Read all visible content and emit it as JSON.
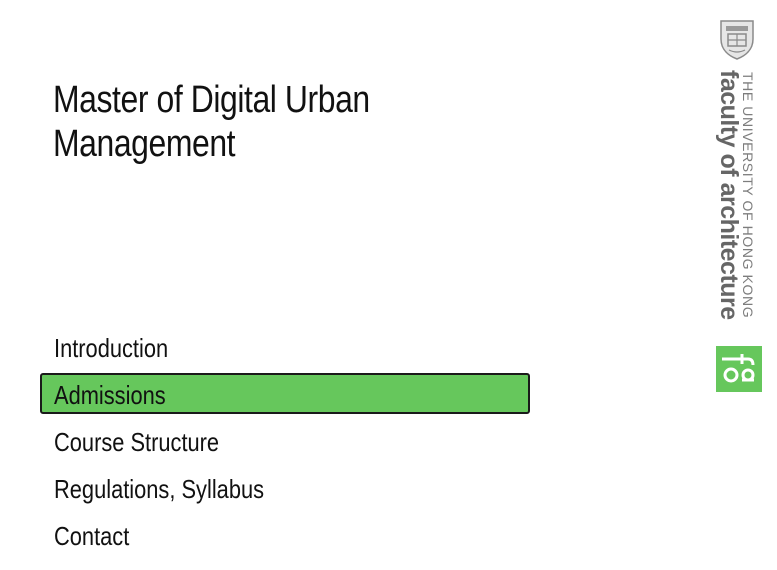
{
  "header": {
    "title_line1": "Master of Digital Urban",
    "title_line2": "Management"
  },
  "nav": {
    "items": [
      {
        "label": "Introduction",
        "active": false
      },
      {
        "label": "Admissions",
        "active": true
      },
      {
        "label": "Course Structure",
        "active": false
      },
      {
        "label": "Regulations, Syllabus",
        "active": false
      },
      {
        "label": "Contact",
        "active": false
      }
    ]
  },
  "logo": {
    "university": "THE UNIVERSITY OF HONG KONG",
    "faculty": "faculty of architecture",
    "mark": "foa",
    "crest_icon": "university-crest-icon",
    "accent_color": "#66c75c"
  },
  "colors": {
    "active_background": "#66c75c",
    "text": "#111111",
    "logo_gray": "#666666"
  }
}
